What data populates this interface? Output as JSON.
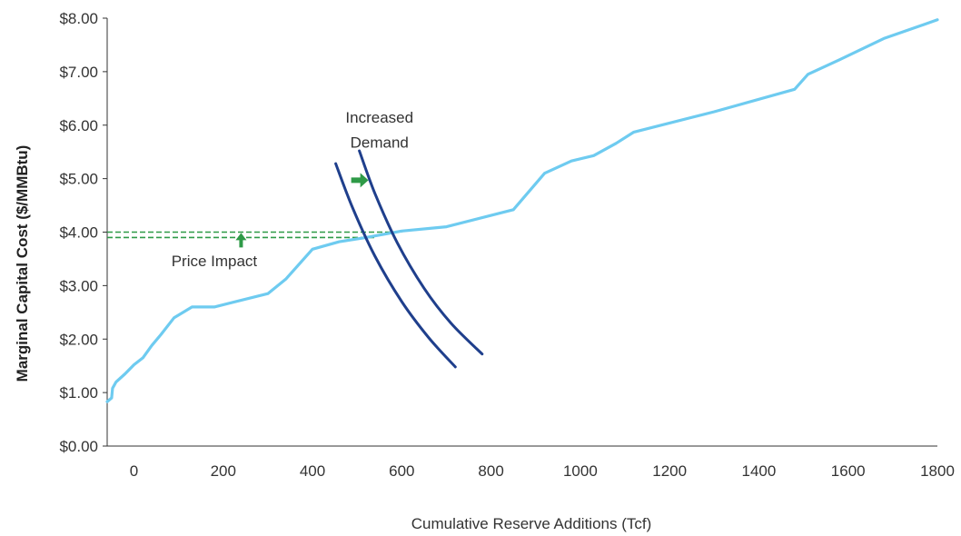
{
  "chart_data": {
    "type": "line",
    "xlabel": "Cumulative Reserve Additions (Tcf)",
    "ylabel": "Marginal Capital Cost ($/MMBtu)",
    "xlim": [
      -60,
      1800
    ],
    "ylim": [
      0,
      8
    ],
    "x_ticks": [
      0,
      200,
      400,
      600,
      800,
      1000,
      1200,
      1400,
      1600,
      1800
    ],
    "x_tick_labels": [
      "0",
      "200",
      "400",
      "600",
      "800",
      "1000",
      "1200",
      "1400",
      "1600",
      "1800"
    ],
    "y_ticks": [
      0,
      1,
      2,
      3,
      4,
      5,
      6,
      7,
      8
    ],
    "y_tick_labels": [
      "$0.00",
      "$1.00",
      "$2.00",
      "$3.00",
      "$4.00",
      "$5.00",
      "$6.00",
      "$7.00",
      "$8.00"
    ],
    "series": [
      {
        "role": "supply",
        "color": "#6ecbf0",
        "x": [
          -60,
          -50,
          -48,
          -40,
          -20,
          0,
          20,
          40,
          60,
          90,
          130,
          180,
          300,
          340,
          400,
          460,
          520,
          600,
          700,
          850,
          920,
          980,
          1030,
          1080,
          1120,
          1300,
          1480,
          1510,
          1580,
          1680,
          1800
        ],
        "y": [
          0.83,
          0.9,
          1.08,
          1.2,
          1.35,
          1.52,
          1.65,
          1.88,
          2.08,
          2.4,
          2.6,
          2.6,
          2.85,
          3.12,
          3.68,
          3.82,
          3.9,
          4.02,
          4.1,
          4.42,
          5.1,
          5.33,
          5.43,
          5.66,
          5.87,
          6.25,
          6.67,
          6.95,
          7.22,
          7.62,
          7.97
        ]
      },
      {
        "role": "demand-original",
        "color": "#1f3f8c",
        "x": [
          452,
          490,
          540,
          600,
          660,
          720
        ],
        "y": [
          5.28,
          4.45,
          3.55,
          2.7,
          2.03,
          1.48
        ]
      },
      {
        "role": "demand-increased",
        "color": "#1f3f8c",
        "x": [
          505,
          540,
          590,
          650,
          710,
          780
        ],
        "y": [
          5.52,
          4.72,
          3.8,
          2.95,
          2.3,
          1.72
        ]
      }
    ],
    "price_lines": [
      {
        "y": 3.9,
        "x_start": -60,
        "x_end": 540,
        "color": "#2e9a47",
        "style": "dashed"
      },
      {
        "y": 4.0,
        "x_start": -60,
        "x_end": 600,
        "color": "#2e9a47",
        "style": "dashed"
      }
    ],
    "annotations": [
      {
        "text": "Increased",
        "x": 550,
        "y": 6.05
      },
      {
        "text": "Demand",
        "x": 550,
        "y": 5.58
      },
      {
        "text": "Price Impact",
        "x": 180,
        "y": 3.36
      }
    ],
    "arrows": [
      {
        "direction": "right",
        "x": 505,
        "y": 4.97,
        "color": "#2e9a47"
      },
      {
        "direction": "up",
        "x": 240,
        "y": 3.85,
        "color": "#2e9a47"
      }
    ],
    "grid": false,
    "legend": "none"
  }
}
